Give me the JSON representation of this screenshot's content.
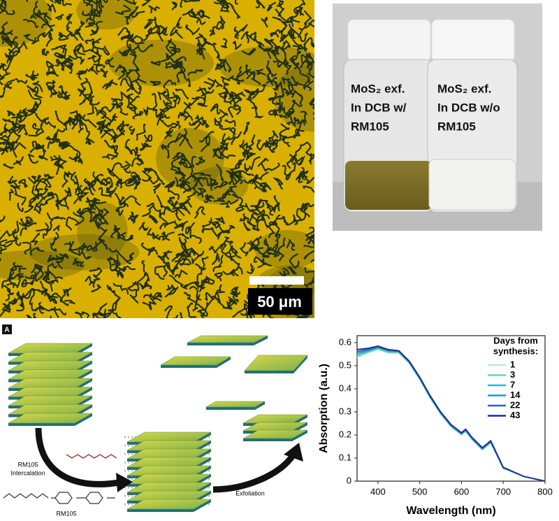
{
  "microscope": {
    "scale_bar": "50 μm"
  },
  "vials": {
    "left": [
      "MoS₂ exf.",
      "In DCB w/",
      "RM105"
    ],
    "right": [
      "MoS₂ exf.",
      "In DCB w/o",
      "RM105"
    ]
  },
  "schematic": {
    "panel_label": "A",
    "intercalation": [
      "RM105",
      "Intercalation"
    ],
    "exfoliation": "Exfoliation",
    "molecule": "RM105"
  },
  "chart_data": {
    "type": "line",
    "x_label": "Wavelength (nm)",
    "y_label": "Absorption (a.u.)",
    "legend_title": [
      "Days from",
      "synthesis:"
    ],
    "x": [
      350,
      375,
      400,
      425,
      450,
      475,
      500,
      525,
      550,
      575,
      600,
      610,
      625,
      650,
      670,
      700,
      750,
      800
    ],
    "series": [
      {
        "name": "1",
        "color": "#bfe8c0",
        "values": [
          0.535,
          0.555,
          0.57,
          0.555,
          0.555,
          0.51,
          0.44,
          0.36,
          0.29,
          0.235,
          0.2,
          0.215,
          0.18,
          0.135,
          0.165,
          0.055,
          0.02,
          0.0
        ]
      },
      {
        "name": "3",
        "color": "#6fd4b4",
        "values": [
          0.54,
          0.558,
          0.573,
          0.558,
          0.557,
          0.512,
          0.442,
          0.362,
          0.292,
          0.237,
          0.202,
          0.217,
          0.182,
          0.137,
          0.167,
          0.056,
          0.02,
          0.0
        ]
      },
      {
        "name": "7",
        "color": "#2fb8c4",
        "values": [
          0.548,
          0.562,
          0.577,
          0.562,
          0.56,
          0.514,
          0.444,
          0.364,
          0.294,
          0.239,
          0.204,
          0.219,
          0.184,
          0.139,
          0.169,
          0.057,
          0.02,
          0.0
        ]
      },
      {
        "name": "14",
        "color": "#1f96d4",
        "values": [
          0.555,
          0.566,
          0.58,
          0.565,
          0.562,
          0.516,
          0.446,
          0.366,
          0.296,
          0.241,
          0.206,
          0.221,
          0.186,
          0.141,
          0.171,
          0.058,
          0.02,
          0.0
        ]
      },
      {
        "name": "22",
        "color": "#2a64b4",
        "values": [
          0.562,
          0.57,
          0.582,
          0.567,
          0.563,
          0.518,
          0.448,
          0.368,
          0.298,
          0.243,
          0.208,
          0.223,
          0.188,
          0.143,
          0.173,
          0.059,
          0.02,
          0.0
        ]
      },
      {
        "name": "43",
        "color": "#1c2c94",
        "values": [
          0.57,
          0.575,
          0.585,
          0.57,
          0.565,
          0.52,
          0.45,
          0.37,
          0.3,
          0.245,
          0.21,
          0.225,
          0.19,
          0.145,
          0.175,
          0.06,
          0.02,
          0.0
        ]
      }
    ],
    "xlim": [
      350,
      800
    ],
    "ylim": [
      0,
      0.63
    ],
    "xticks": [
      400,
      500,
      600,
      700,
      800
    ],
    "yticks": [
      0,
      0.1,
      0.2,
      0.3,
      0.4,
      0.5,
      0.6
    ]
  }
}
